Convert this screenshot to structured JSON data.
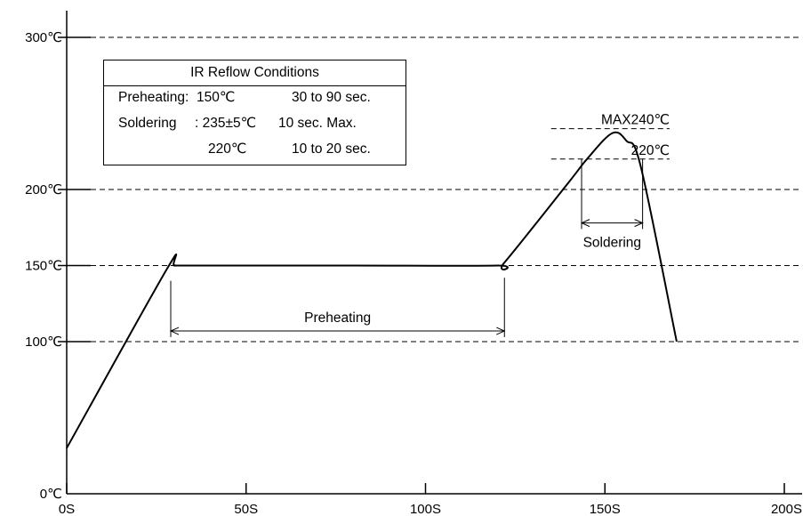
{
  "chart_data": {
    "type": "line",
    "title": "",
    "xlabel": "",
    "ylabel": "",
    "x_ticks": [
      "0S",
      "50S",
      "100S",
      "150S",
      "200S"
    ],
    "y_ticks": [
      {
        "value": 0,
        "label": "0℃"
      },
      {
        "value": 100,
        "label": "100℃"
      },
      {
        "value": 150,
        "label": "150℃"
      },
      {
        "value": 200,
        "label": "200℃"
      },
      {
        "value": 300,
        "label": "300℃"
      }
    ],
    "xlim": [
      0,
      200
    ],
    "ylim": [
      0,
      300
    ],
    "grid": "dashed horizontal lines at 100, 150, 200, 300 ℃",
    "series": [
      {
        "x": [
          0,
          28,
          30,
          35,
          80,
          120,
          122,
          140,
          145,
          152,
          156,
          160,
          170
        ],
        "y": [
          30,
          148,
          150,
          150,
          150,
          150,
          152,
          205,
          220,
          237,
          232,
          215,
          100
        ]
      }
    ],
    "reference_lines": [
      {
        "label": "MAX240℃",
        "y": 240
      },
      {
        "label": "220℃",
        "y": 220
      }
    ],
    "annotations": {
      "preheating": "Preheating",
      "soldering": "Soldering"
    },
    "legend_box": {
      "title": "IR Reflow Conditions",
      "rows": [
        {
          "label": "Preheating:",
          "temp": "150℃",
          "time": "30 to 90 sec."
        },
        {
          "label": "Soldering",
          "temp": ": 235±5℃",
          "time": "10 sec. Max."
        },
        {
          "label": "",
          "temp": "220℃",
          "time": "10 to 20 sec."
        }
      ]
    },
    "colors": {
      "line": "#000000",
      "background": "#ffffff"
    }
  }
}
